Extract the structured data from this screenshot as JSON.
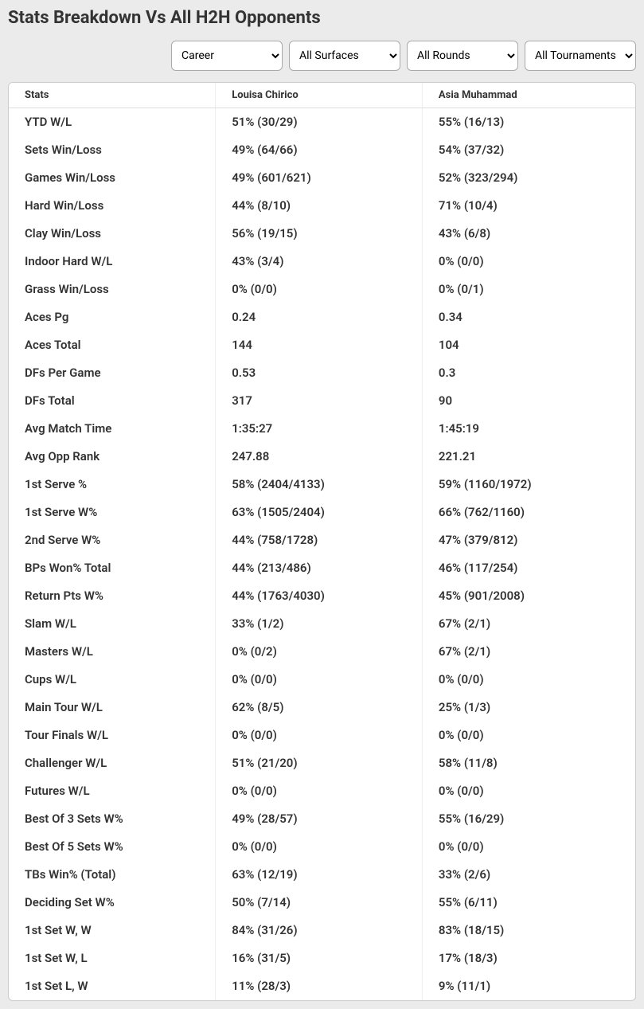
{
  "title": "Stats Breakdown Vs All H2H Opponents",
  "filters": {
    "career": {
      "selected": "Career",
      "options": [
        "Career"
      ]
    },
    "surfaces": {
      "selected": "All Surfaces",
      "options": [
        "All Surfaces"
      ]
    },
    "rounds": {
      "selected": "All Rounds",
      "options": [
        "All Rounds"
      ]
    },
    "tournaments": {
      "selected": "All Tournaments",
      "options": [
        "All Tournaments"
      ]
    }
  },
  "columns": [
    "Stats",
    "Louisa Chirico",
    "Asia Muhammad"
  ],
  "rows": [
    {
      "stat": "YTD W/L",
      "p1": "51% (30/29)",
      "p2": "55% (16/13)"
    },
    {
      "stat": "Sets Win/Loss",
      "p1": "49% (64/66)",
      "p2": "54% (37/32)"
    },
    {
      "stat": "Games Win/Loss",
      "p1": "49% (601/621)",
      "p2": "52% (323/294)"
    },
    {
      "stat": "Hard Win/Loss",
      "p1": "44% (8/10)",
      "p2": "71% (10/4)"
    },
    {
      "stat": "Clay Win/Loss",
      "p1": "56% (19/15)",
      "p2": "43% (6/8)"
    },
    {
      "stat": "Indoor Hard W/L",
      "p1": "43% (3/4)",
      "p2": "0% (0/0)"
    },
    {
      "stat": "Grass Win/Loss",
      "p1": "0% (0/0)",
      "p2": "0% (0/1)"
    },
    {
      "stat": "Aces Pg",
      "p1": "0.24",
      "p2": "0.34"
    },
    {
      "stat": "Aces Total",
      "p1": "144",
      "p2": "104"
    },
    {
      "stat": "DFs Per Game",
      "p1": "0.53",
      "p2": "0.3"
    },
    {
      "stat": "DFs Total",
      "p1": "317",
      "p2": "90"
    },
    {
      "stat": "Avg Match Time",
      "p1": "1:35:27",
      "p2": "1:45:19"
    },
    {
      "stat": "Avg Opp Rank",
      "p1": "247.88",
      "p2": "221.21"
    },
    {
      "stat": "1st Serve %",
      "p1": "58% (2404/4133)",
      "p2": "59% (1160/1972)"
    },
    {
      "stat": "1st Serve W%",
      "p1": "63% (1505/2404)",
      "p2": "66% (762/1160)"
    },
    {
      "stat": "2nd Serve W%",
      "p1": "44% (758/1728)",
      "p2": "47% (379/812)"
    },
    {
      "stat": "BPs Won% Total",
      "p1": "44% (213/486)",
      "p2": "46% (117/254)"
    },
    {
      "stat": "Return Pts W%",
      "p1": "44% (1763/4030)",
      "p2": "45% (901/2008)"
    },
    {
      "stat": "Slam W/L",
      "p1": "33% (1/2)",
      "p2": "67% (2/1)"
    },
    {
      "stat": "Masters W/L",
      "p1": "0% (0/2)",
      "p2": "67% (2/1)"
    },
    {
      "stat": "Cups W/L",
      "p1": "0% (0/0)",
      "p2": "0% (0/0)"
    },
    {
      "stat": "Main Tour W/L",
      "p1": "62% (8/5)",
      "p2": "25% (1/3)"
    },
    {
      "stat": "Tour Finals W/L",
      "p1": "0% (0/0)",
      "p2": "0% (0/0)"
    },
    {
      "stat": "Challenger W/L",
      "p1": "51% (21/20)",
      "p2": "58% (11/8)"
    },
    {
      "stat": "Futures W/L",
      "p1": "0% (0/0)",
      "p2": "0% (0/0)"
    },
    {
      "stat": "Best Of 3 Sets W%",
      "p1": "49% (28/57)",
      "p2": "55% (16/29)"
    },
    {
      "stat": "Best Of 5 Sets W%",
      "p1": "0% (0/0)",
      "p2": "0% (0/0)"
    },
    {
      "stat": "TBs Win% (Total)",
      "p1": "63% (12/19)",
      "p2": "33% (2/6)"
    },
    {
      "stat": "Deciding Set W%",
      "p1": "50% (7/14)",
      "p2": "55% (6/11)"
    },
    {
      "stat": "1st Set W, W",
      "p1": "84% (31/26)",
      "p2": "83% (18/15)"
    },
    {
      "stat": "1st Set W, L",
      "p1": "16% (31/5)",
      "p2": "17% (18/3)"
    },
    {
      "stat": "1st Set L, W",
      "p1": "11% (28/3)",
      "p2": "9% (11/1)"
    }
  ]
}
